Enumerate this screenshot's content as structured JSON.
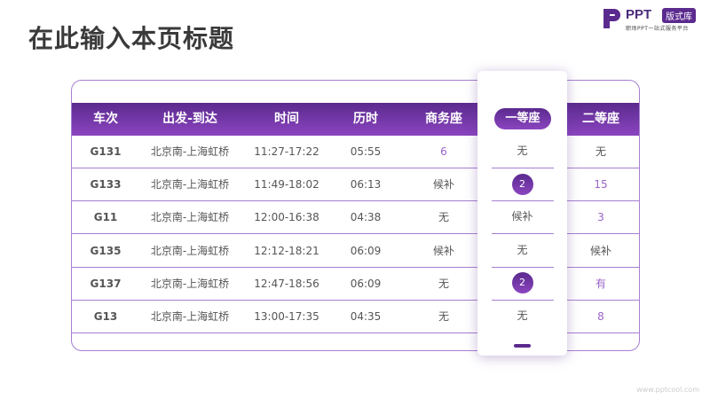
{
  "title": "在此输入本页标题",
  "logo": {
    "text": "PPT",
    "badge": "版式库",
    "subtitle": "职场PPT一站式服务平台"
  },
  "headers": [
    "车次",
    "出发-到达",
    "时间",
    "历时",
    "商务座",
    "一等座",
    "二等座"
  ],
  "rows": [
    {
      "train": "G131",
      "route": "北京南-上海虹桥",
      "time": "11:27-17:22",
      "duration": "05:55",
      "business": "6",
      "first": "无",
      "second": "无"
    },
    {
      "train": "G133",
      "route": "北京南-上海虹桥",
      "time": "11:49-18:02",
      "duration": "06:13",
      "business": "候补",
      "first": "2",
      "second": "15"
    },
    {
      "train": "G11",
      "route": "北京南-上海虹桥",
      "time": "12:00-16:38",
      "duration": "04:38",
      "business": "无",
      "first": "候补",
      "second": "3"
    },
    {
      "train": "G135",
      "route": "北京南-上海虹桥",
      "time": "12:12-18:21",
      "duration": "06:09",
      "business": "候补",
      "first": "无",
      "second": "候补"
    },
    {
      "train": "G137",
      "route": "北京南-上海虹桥",
      "time": "12:47-18:56",
      "duration": "06:09",
      "business": "无",
      "first": "2",
      "second": "有"
    },
    {
      "train": "G13",
      "route": "北京南-上海虹桥",
      "time": "13:00-17:35",
      "duration": "04:35",
      "business": "无",
      "first": "无",
      "second": "8"
    }
  ],
  "highlight_circles": [
    false,
    true,
    false,
    false,
    true,
    false
  ],
  "purple_business": [
    true,
    false,
    false,
    false,
    false,
    false
  ],
  "purple_second": [
    false,
    true,
    true,
    false,
    true,
    true
  ],
  "colors": {
    "accent": "#5b2a8e",
    "accent_light": "#8b45c0",
    "border": "#a67fd0"
  },
  "footer": "www.pptcool.com"
}
